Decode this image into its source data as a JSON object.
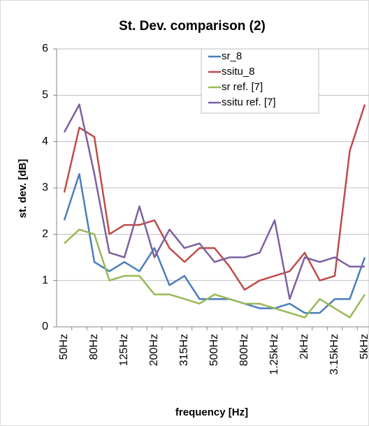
{
  "chart_data": {
    "type": "line",
    "title": "St. Dev. comparison (2)",
    "x_label": "frequency [Hz]",
    "y_label": "st. dev. [dB]",
    "categories": [
      "50Hz",
      null,
      "80Hz",
      null,
      "125Hz",
      null,
      "200Hz",
      null,
      "315Hz",
      null,
      "500Hz",
      null,
      "800Hz",
      null,
      "1.25kHz",
      null,
      "2kHz",
      null,
      "3.15kHz",
      null,
      "5kHz"
    ],
    "series": [
      {
        "name": "sr_8",
        "color": "#4a7ebb",
        "values": [
          2.3,
          3.3,
          1.4,
          1.2,
          1.4,
          1.2,
          1.7,
          0.9,
          1.1,
          0.6,
          0.6,
          0.6,
          0.5,
          0.4,
          0.4,
          0.5,
          0.3,
          0.3,
          0.6,
          0.6,
          1.5
        ]
      },
      {
        "name": "ssitu_8",
        "color": "#be4b48",
        "values": [
          2.9,
          4.3,
          4.1,
          2.0,
          2.2,
          2.2,
          2.3,
          1.7,
          1.4,
          1.7,
          1.7,
          1.3,
          0.8,
          1.0,
          1.1,
          1.2,
          1.6,
          1.0,
          1.1,
          3.8,
          4.8
        ]
      },
      {
        "name": "sr ref. [7]",
        "color": "#98b954",
        "values": [
          1.8,
          2.1,
          2.0,
          1.0,
          1.1,
          1.1,
          0.7,
          0.7,
          0.6,
          0.5,
          0.7,
          0.6,
          0.5,
          0.5,
          0.4,
          0.3,
          0.2,
          0.6,
          0.4,
          0.2,
          0.7
        ]
      },
      {
        "name": "ssitu ref. [7]",
        "color": "#7d60a0",
        "values": [
          4.2,
          4.8,
          3.3,
          1.6,
          1.5,
          2.6,
          1.5,
          2.1,
          1.7,
          1.8,
          1.4,
          1.5,
          1.5,
          1.6,
          2.3,
          0.6,
          1.5,
          1.4,
          1.5,
          1.3,
          1.3
        ]
      }
    ],
    "ylim": [
      0,
      6
    ],
    "yticks": [
      0,
      1,
      2,
      3,
      4,
      5,
      6
    ],
    "grid": true,
    "legend": "top-right"
  }
}
